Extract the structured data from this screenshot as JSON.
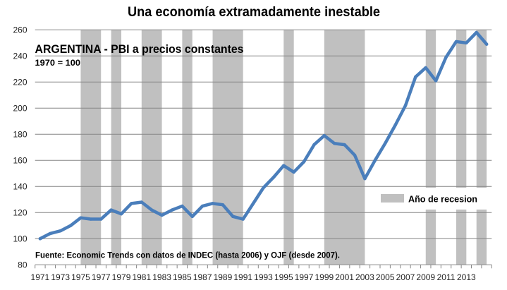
{
  "chart_data": {
    "type": "line",
    "title": "Una economía extramadamente inestable",
    "subtitle": "ARGENTINA - PBI a precios constantes",
    "base_note": "1970 = 100",
    "source": "Fuente: Economic Trends con datos de INDEC (hasta 2006) y OJF (desde 2007).",
    "xlabel": "",
    "ylabel": "",
    "categories": [
      1971,
      1972,
      1973,
      1974,
      1975,
      1976,
      1977,
      1978,
      1979,
      1980,
      1981,
      1982,
      1983,
      1984,
      1985,
      1986,
      1987,
      1988,
      1989,
      1990,
      1991,
      1992,
      1993,
      1994,
      1995,
      1996,
      1997,
      1998,
      1999,
      2000,
      2001,
      2002,
      2003,
      2004,
      2005,
      2006,
      2007,
      2008,
      2009,
      2010,
      2011,
      2012,
      2013,
      2014,
      2015
    ],
    "xtick_labels": [
      "1971",
      "1973",
      "1975",
      "1977",
      "1979",
      "1981",
      "1983",
      "1985",
      "1987",
      "1989",
      "1991",
      "1993",
      "1995",
      "1997",
      "1999",
      "2001",
      "2003",
      "2005",
      "2007",
      "2009",
      "2011",
      "2013"
    ],
    "ylim": [
      80,
      260
    ],
    "yticks": [
      80,
      100,
      120,
      140,
      160,
      180,
      200,
      220,
      240,
      260
    ],
    "grid": true,
    "series": [
      {
        "name": "ARGENTINA - PBI a precios constantes",
        "color": "#4a7ebb",
        "values": [
          100,
          104,
          106,
          110,
          116,
          115,
          115,
          122,
          119,
          127,
          128,
          122,
          118,
          122,
          125,
          117,
          125,
          127,
          126,
          117,
          115,
          127,
          139,
          147,
          156,
          151,
          159,
          172,
          179,
          173,
          172,
          164,
          146,
          160,
          173,
          187,
          202,
          224,
          231,
          221,
          239,
          251,
          250,
          258,
          249
        ]
      }
    ],
    "recession_periods": [
      {
        "start": 1975,
        "end": 1977
      },
      {
        "start": 1978,
        "end": 1979
      },
      {
        "start": 1981,
        "end": 1983
      },
      {
        "start": 1985,
        "end": 1986
      },
      {
        "start": 1988,
        "end": 1991
      },
      {
        "start": 1995,
        "end": 1996
      },
      {
        "start": 1999,
        "end": 2003
      },
      {
        "start": 2009,
        "end": 2010
      },
      {
        "start": 2012,
        "end": 2013
      },
      {
        "start": 2014,
        "end": 2015
      }
    ],
    "recession_color": "#c0c0c0",
    "gridline_color": "#868686",
    "legend": {
      "position": "right",
      "entries": [
        {
          "label": "Año de recesion",
          "color": "#c0c0c0"
        }
      ]
    }
  }
}
